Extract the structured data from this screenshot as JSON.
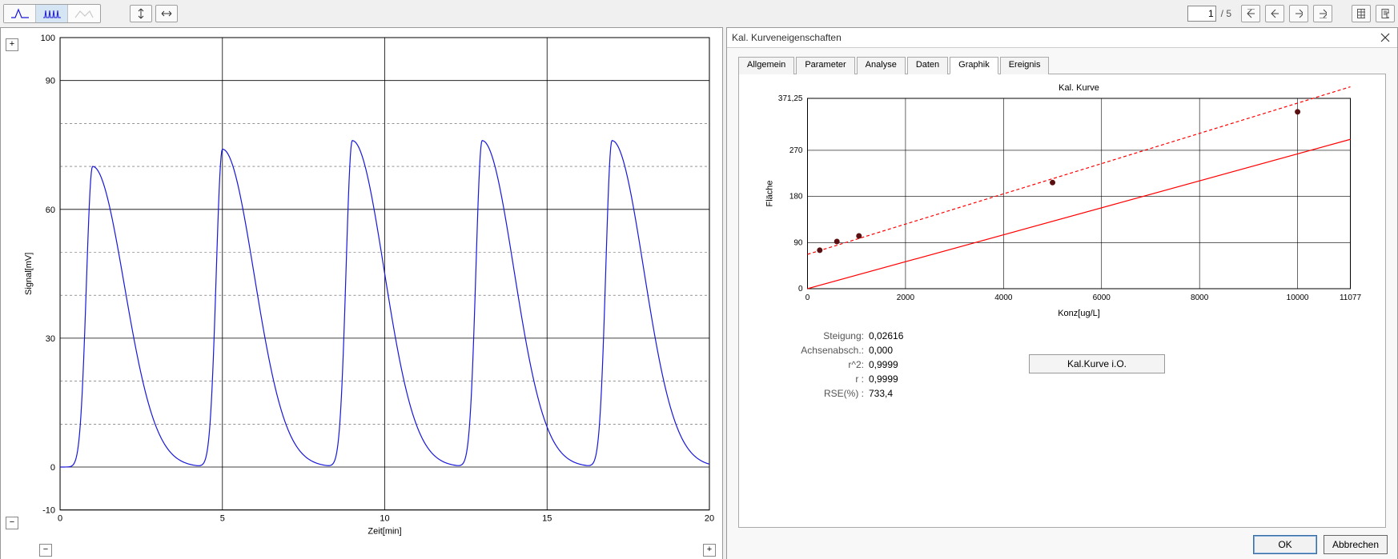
{
  "toolbar": {
    "pager_current": "1",
    "pager_total": "/ 5"
  },
  "chrom": {
    "type": "line",
    "x_label": "Zeit[min]",
    "y_label": "Signal[mV]",
    "xlim": [
      0,
      20
    ],
    "ylim": [
      -10,
      100
    ],
    "x_ticks": [
      0,
      5,
      10,
      15,
      20
    ],
    "y_ticks": [
      -10,
      0,
      30,
      60,
      90,
      100
    ],
    "y_minor": [
      10,
      20,
      40,
      50,
      70,
      80
    ],
    "line_color": "#1818d8",
    "line_width": 1.2,
    "grid_color": "#000000",
    "minor_grid_color": "#555555",
    "background_color": "#ffffff",
    "label_fontsize": 11,
    "peak_centers": [
      1.0,
      5.0,
      9.0,
      13.0,
      17.0
    ],
    "peak_heights": [
      70,
      74,
      76,
      76,
      76
    ],
    "peak_lead": 0.45,
    "peak_tail": 2.3,
    "baseline": 0
  },
  "dialog": {
    "title": "Kal. Kurveneigenschaften",
    "tabs": [
      "Allgemein",
      "Parameter",
      "Analyse",
      "Daten",
      "Graphik",
      "Ereignis"
    ],
    "active_tab_index": 4,
    "cal_button_label": "Kal.Kurve i.O.",
    "ok_label": "OK",
    "cancel_label": "Abbrechen"
  },
  "calchart": {
    "type": "scatter+line",
    "title": "Kal. Kurve",
    "x_label": "Konz[ug/L]",
    "y_label": "Fläche",
    "xlim": [
      0,
      11077
    ],
    "ylim": [
      0,
      371.25
    ],
    "x_ticks": [
      0,
      2000,
      4000,
      6000,
      8000,
      10000,
      11077
    ],
    "y_ticks": [
      0,
      90,
      180,
      270,
      371.25
    ],
    "point_color": "#5a1010",
    "point_radius": 3.5,
    "fit_line_color": "#ff0000",
    "fit_line_dash": "4,3",
    "ref_line_color": "#ff0000",
    "grid_color": "#000000",
    "title_fontsize": 11,
    "label_fontsize": 11,
    "points_x": [
      250,
      600,
      1050,
      5000,
      10000
    ],
    "points_y": [
      75,
      92,
      103,
      207,
      345
    ],
    "fit_slope": 0.0295,
    "fit_intercept": 67,
    "ref_slope": 0.0263,
    "ref_intercept": 0
  },
  "stats": {
    "labels": {
      "slope": "Steigung:",
      "intercept": "Achsenabsch.:",
      "r2": "r^2:",
      "r": "r :",
      "rse": "RSE(%) :"
    },
    "values": {
      "slope": "0,02616",
      "intercept": "0,000",
      "r2": "0,9999",
      "r": "0,9999",
      "rse": "733,4"
    }
  }
}
